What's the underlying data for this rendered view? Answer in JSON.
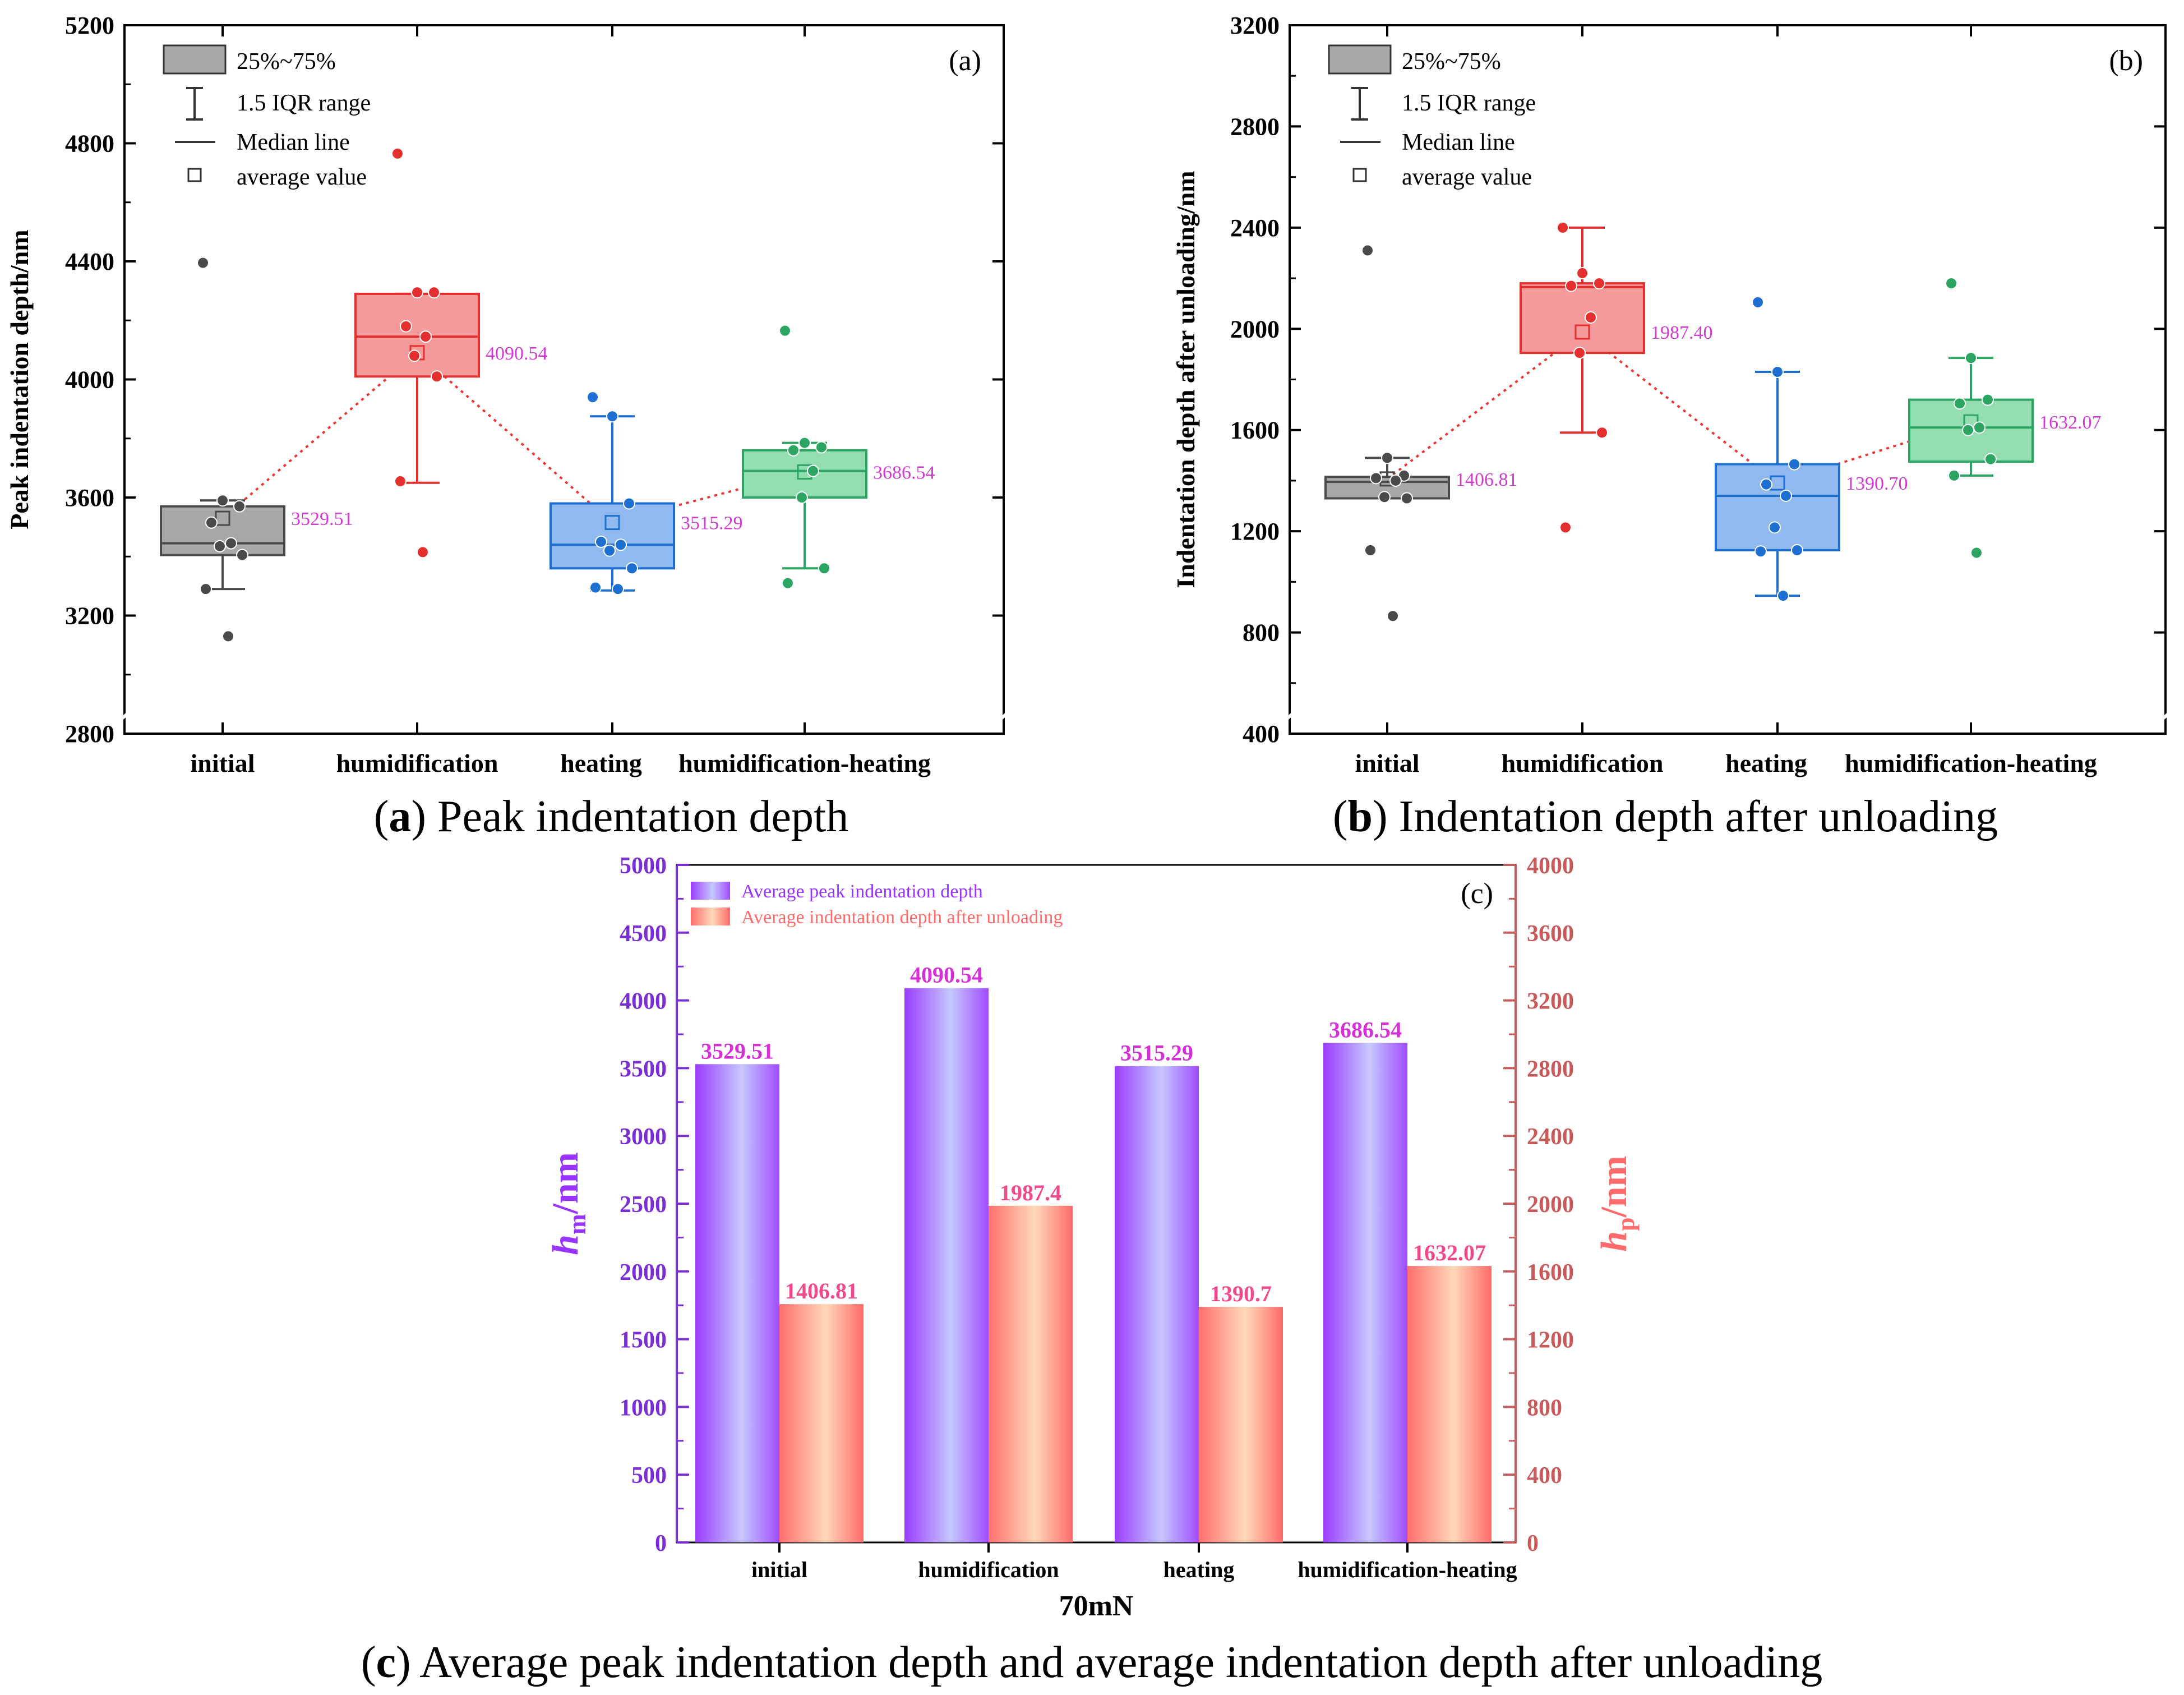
{
  "palette": {
    "gray": "#a8a8a8",
    "gray_edge": "#4a4a4a",
    "red": "#f49a9a",
    "red_edge": "#e3302f",
    "blue": "#8fb9ef",
    "blue_edge": "#1e6fd2",
    "green": "#92deb0",
    "green_edge": "#2aa562",
    "mean_label": "#d23bd2",
    "purple": "#9933ff",
    "peach": "#ff7070",
    "bar_label_c": "#d530d5",
    "bar_label_p": "#ee4a8c",
    "right_axis": "#c75a5a"
  },
  "captions": {
    "a_letter": "a",
    "a_text": " Peak indentation depth",
    "b_letter": "b",
    "b_text": " Indentation depth after unloading",
    "c_letter": "c",
    "c_text": " Average peak indentation depth and average indentation depth after unloading"
  },
  "chart_data": [
    {
      "type": "box",
      "panel_label": "(a)",
      "ylabel": "Peak indentation depth/nm",
      "ylim": [
        2800,
        5200
      ],
      "yticks": [
        2800,
        3200,
        3600,
        4000,
        4400,
        4800,
        5200
      ],
      "categories": [
        "initial",
        "humidification",
        "heating",
        "humidification-heating"
      ],
      "legend": [
        "25%~75%",
        "1.5 IQR range",
        "Median line",
        "average value"
      ],
      "groups": [
        {
          "name": "initial",
          "q1": 3405,
          "q3": 3570,
          "median": 3445,
          "whisker_low": 3290,
          "whisker_high": 3590,
          "mean": 3529.51,
          "mean_label": "3529.51",
          "points": [
            4395,
            3590,
            3570,
            3515,
            3445,
            3435,
            3405,
            3290,
            3130
          ]
        },
        {
          "name": "humidification",
          "q1": 4010,
          "q3": 4290,
          "median": 4145,
          "whisker_low": 3650,
          "whisker_high": 4290,
          "mean": 4090.54,
          "mean_label": "4090.54",
          "points": [
            4765,
            4295,
            4295,
            4180,
            4145,
            4080,
            4010,
            3655,
            3415
          ]
        },
        {
          "name": "heating",
          "q1": 3360,
          "q3": 3580,
          "median": 3440,
          "whisker_low": 3285,
          "whisker_high": 3875,
          "mean": 3515.29,
          "mean_label": "3515.29",
          "points": [
            3940,
            3875,
            3580,
            3450,
            3440,
            3420,
            3360,
            3295,
            3290
          ]
        },
        {
          "name": "humidification-heating",
          "q1": 3600,
          "q3": 3760,
          "median": 3690,
          "whisker_low": 3360,
          "whisker_high": 3785,
          "mean": 3686.54,
          "mean_label": "3686.54",
          "points": [
            4165,
            3785,
            3770,
            3760,
            3690,
            3600,
            3360,
            3310
          ]
        }
      ]
    },
    {
      "type": "box",
      "panel_label": "(b)",
      "ylabel": "Indentation depth after unloading/nm",
      "ylim": [
        400,
        3200
      ],
      "yticks": [
        400,
        800,
        1200,
        1600,
        2000,
        2400,
        2800,
        3200
      ],
      "categories": [
        "initial",
        "humidification",
        "heating",
        "humidification-heating"
      ],
      "legend": [
        "25%~75%",
        "1.5 IQR range",
        "Median line",
        "average value"
      ],
      "groups": [
        {
          "name": "initial",
          "q1": 1330,
          "q3": 1415,
          "median": 1395,
          "whisker_low": 1330,
          "whisker_high": 1490,
          "mean": 1406.81,
          "mean_label": "1406.81",
          "points": [
            2310,
            1490,
            1420,
            1410,
            1400,
            1335,
            1330,
            1125,
            865
          ]
        },
        {
          "name": "humidification",
          "q1": 1905,
          "q3": 2180,
          "median": 2165,
          "whisker_low": 1590,
          "whisker_high": 2400,
          "mean": 1987.4,
          "mean_label": "1987.40",
          "points": [
            2400,
            2220,
            2180,
            2170,
            2045,
            1905,
            1590,
            1215
          ]
        },
        {
          "name": "heating",
          "q1": 1125,
          "q3": 1465,
          "median": 1340,
          "whisker_low": 945,
          "whisker_high": 1830,
          "mean": 1390.7,
          "mean_label": "1390.70",
          "points": [
            2105,
            1830,
            1465,
            1385,
            1340,
            1215,
            1125,
            1120,
            945
          ]
        },
        {
          "name": "humidification-heating",
          "q1": 1475,
          "q3": 1720,
          "median": 1610,
          "whisker_low": 1420,
          "whisker_high": 1885,
          "mean": 1632.07,
          "mean_label": "1632.07",
          "points": [
            2180,
            1885,
            1720,
            1705,
            1610,
            1600,
            1485,
            1420,
            1115
          ]
        }
      ]
    },
    {
      "type": "bar",
      "panel_label": "(c)",
      "xlabel": "70mN",
      "ylabel_left": {
        "main": "h",
        "sub": "m",
        "unit": "/nm"
      },
      "ylabel_right": {
        "main": "h",
        "sub": "p",
        "unit": "/nm"
      },
      "ylim_left": [
        0,
        5000
      ],
      "yticks_left": [
        0,
        500,
        1000,
        1500,
        2000,
        2500,
        3000,
        3500,
        4000,
        4500,
        5000
      ],
      "ylim_right": [
        0,
        4000
      ],
      "yticks_right": [
        0,
        400,
        800,
        1200,
        1600,
        2000,
        2400,
        2800,
        3200,
        3600,
        4000
      ],
      "categories": [
        "initial",
        "humidification",
        "heating",
        "humidification-heating"
      ],
      "series": [
        {
          "name": "Average peak indentation depth",
          "axis": "left",
          "values": [
            3529.51,
            4090.54,
            3515.29,
            3686.54
          ],
          "labels": [
            "3529.51",
            "4090.54",
            "3515.29",
            "3686.54"
          ]
        },
        {
          "name": "Average indentation depth after unloading",
          "axis": "right",
          "values": [
            1406.81,
            1987.4,
            1390.7,
            1632.07
          ],
          "labels": [
            "1406.81",
            "1987.4",
            "1390.7",
            "1632.07"
          ]
        }
      ]
    }
  ]
}
